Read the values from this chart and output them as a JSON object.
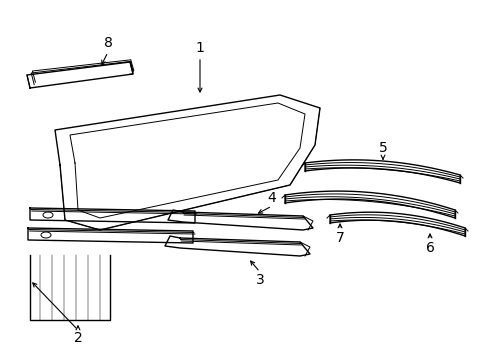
{
  "bg_color": "#ffffff",
  "line_color": "#000000",
  "lw": 1.0,
  "tlw": 0.7,
  "fig_width": 4.89,
  "fig_height": 3.6,
  "dpi": 100
}
